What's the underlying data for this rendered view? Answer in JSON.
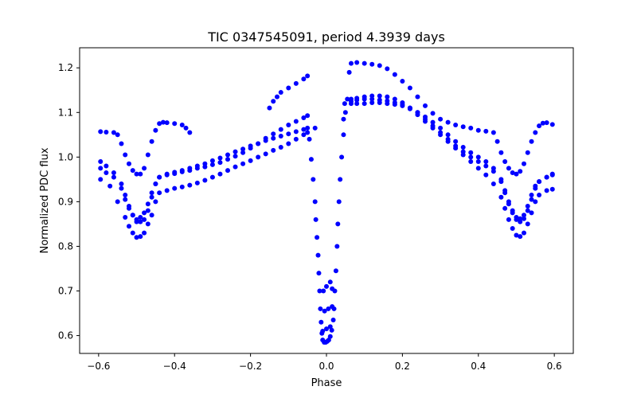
{
  "chart_data": {
    "type": "scatter",
    "title": "TIC 0347545091, period 4.3939 days",
    "xlabel": "Phase",
    "ylabel": "Normalized PDC flux",
    "xlim": [
      -0.65,
      0.65
    ],
    "ylim": [
      0.56,
      1.245
    ],
    "xticks": [
      -0.6,
      -0.4,
      -0.2,
      0.0,
      0.2,
      0.4,
      0.6
    ],
    "xtick_labels": [
      "−0.6",
      "−0.4",
      "−0.2",
      "0.0",
      "0.2",
      "0.4",
      "0.6"
    ],
    "yticks": [
      0.6,
      0.7,
      0.8,
      0.9,
      1.0,
      1.1,
      1.2
    ],
    "ytick_labels": [
      "0.6",
      "0.7",
      "0.8",
      "0.9",
      "1.0",
      "1.1",
      "1.2"
    ],
    "grid": false,
    "marker_color": "#0000ff",
    "series": [
      {
        "points": [
          [
            -0.595,
            0.975
          ],
          [
            -0.58,
            0.965
          ],
          [
            -0.56,
            0.955
          ],
          [
            -0.54,
            0.93
          ],
          [
            -0.53,
            0.905
          ],
          [
            -0.52,
            0.885
          ],
          [
            -0.51,
            0.87
          ],
          [
            -0.5,
            0.86
          ],
          [
            -0.49,
            0.865
          ],
          [
            -0.48,
            0.875
          ],
          [
            -0.47,
            0.895
          ],
          [
            -0.46,
            0.92
          ],
          [
            -0.45,
            0.94
          ],
          [
            -0.44,
            0.955
          ],
          [
            -0.42,
            0.962
          ],
          [
            -0.4,
            0.966
          ],
          [
            -0.38,
            0.97
          ],
          [
            -0.36,
            0.975
          ],
          [
            -0.34,
            0.98
          ],
          [
            -0.32,
            0.985
          ],
          [
            -0.3,
            0.992
          ],
          [
            -0.28,
            0.998
          ],
          [
            -0.26,
            1.005
          ],
          [
            -0.24,
            1.012
          ],
          [
            -0.22,
            1.018
          ],
          [
            -0.2,
            1.025
          ],
          [
            -0.18,
            1.03
          ],
          [
            -0.16,
            1.037
          ],
          [
            -0.14,
            1.042
          ],
          [
            -0.12,
            1.047
          ],
          [
            -0.1,
            1.052
          ],
          [
            -0.08,
            1.057
          ],
          [
            -0.06,
            1.062
          ],
          [
            -0.05,
            1.065
          ],
          [
            0.065,
            1.125
          ],
          [
            0.08,
            1.128
          ],
          [
            0.1,
            1.13
          ],
          [
            0.12,
            1.13
          ],
          [
            0.14,
            1.128
          ],
          [
            0.16,
            1.126
          ],
          [
            0.18,
            1.122
          ],
          [
            0.2,
            1.118
          ],
          [
            0.22,
            1.11
          ],
          [
            0.24,
            1.1
          ],
          [
            0.26,
            1.09
          ],
          [
            0.28,
            1.078
          ],
          [
            0.3,
            1.065
          ],
          [
            0.32,
            1.05
          ],
          [
            0.34,
            1.035
          ],
          [
            0.36,
            1.022
          ],
          [
            0.38,
            1.01
          ],
          [
            0.4,
            1.0
          ],
          [
            0.42,
            0.99
          ],
          [
            0.44,
            0.975
          ],
          [
            0.46,
            0.95
          ],
          [
            0.47,
            0.925
          ],
          [
            0.48,
            0.9
          ],
          [
            0.49,
            0.88
          ],
          [
            0.5,
            0.865
          ],
          [
            0.51,
            0.862
          ],
          [
            0.52,
            0.87
          ],
          [
            0.53,
            0.89
          ],
          [
            0.54,
            0.915
          ],
          [
            0.55,
            0.935
          ],
          [
            0.56,
            0.945
          ],
          [
            0.58,
            0.955
          ],
          [
            0.595,
            0.96
          ]
        ]
      },
      {
        "points": [
          [
            -0.595,
            0.95
          ],
          [
            -0.57,
            0.935
          ],
          [
            -0.55,
            0.9
          ],
          [
            -0.53,
            0.865
          ],
          [
            -0.52,
            0.845
          ],
          [
            -0.51,
            0.83
          ],
          [
            -0.5,
            0.82
          ],
          [
            -0.49,
            0.822
          ],
          [
            -0.48,
            0.83
          ],
          [
            -0.47,
            0.85
          ],
          [
            -0.46,
            0.87
          ],
          [
            -0.45,
            0.9
          ],
          [
            -0.44,
            0.92
          ],
          [
            -0.42,
            0.925
          ],
          [
            -0.4,
            0.93
          ],
          [
            -0.38,
            0.933
          ],
          [
            -0.36,
            0.937
          ],
          [
            -0.34,
            0.942
          ],
          [
            -0.32,
            0.948
          ],
          [
            -0.3,
            0.955
          ],
          [
            -0.28,
            0.962
          ],
          [
            -0.26,
            0.97
          ],
          [
            -0.24,
            0.978
          ],
          [
            -0.22,
            0.985
          ],
          [
            -0.2,
            0.992
          ],
          [
            -0.18,
            1.0
          ],
          [
            -0.16,
            1.007
          ],
          [
            -0.14,
            1.015
          ],
          [
            -0.12,
            1.022
          ],
          [
            -0.1,
            1.03
          ],
          [
            -0.08,
            1.04
          ],
          [
            -0.06,
            1.05
          ],
          [
            -0.05,
            1.055
          ],
          [
            0.065,
            1.13
          ],
          [
            0.08,
            1.132
          ],
          [
            0.1,
            1.135
          ],
          [
            0.12,
            1.137
          ],
          [
            0.14,
            1.137
          ],
          [
            0.16,
            1.135
          ],
          [
            0.18,
            1.13
          ],
          [
            0.2,
            1.122
          ],
          [
            0.22,
            1.11
          ],
          [
            0.24,
            1.095
          ],
          [
            0.26,
            1.08
          ],
          [
            0.28,
            1.065
          ],
          [
            0.3,
            1.05
          ],
          [
            0.32,
            1.035
          ],
          [
            0.34,
            1.02
          ],
          [
            0.36,
            1.005
          ],
          [
            0.38,
            0.99
          ],
          [
            0.4,
            0.975
          ],
          [
            0.42,
            0.96
          ],
          [
            0.44,
            0.94
          ],
          [
            0.46,
            0.91
          ],
          [
            0.47,
            0.885
          ],
          [
            0.48,
            0.86
          ],
          [
            0.49,
            0.84
          ],
          [
            0.5,
            0.825
          ],
          [
            0.51,
            0.822
          ],
          [
            0.52,
            0.83
          ],
          [
            0.53,
            0.85
          ],
          [
            0.54,
            0.875
          ],
          [
            0.55,
            0.9
          ],
          [
            0.56,
            0.915
          ],
          [
            0.58,
            0.925
          ],
          [
            0.595,
            0.928
          ]
        ]
      },
      {
        "points": [
          [
            -0.595,
            0.99
          ],
          [
            -0.58,
            0.98
          ],
          [
            -0.56,
            0.965
          ],
          [
            -0.54,
            0.94
          ],
          [
            -0.53,
            0.915
          ],
          [
            -0.52,
            0.89
          ],
          [
            -0.51,
            0.87
          ],
          [
            -0.5,
            0.855
          ],
          [
            -0.49,
            0.855
          ],
          [
            -0.48,
            0.86
          ],
          [
            -0.47,
            0.88
          ],
          [
            -0.46,
            0.91
          ],
          [
            -0.45,
            0.94
          ],
          [
            -0.44,
            0.955
          ],
          [
            -0.42,
            0.96
          ],
          [
            -0.4,
            0.963
          ],
          [
            -0.38,
            0.967
          ],
          [
            -0.36,
            0.97
          ],
          [
            -0.34,
            0.975
          ],
          [
            -0.32,
            0.978
          ],
          [
            -0.3,
            0.983
          ],
          [
            -0.28,
            0.988
          ],
          [
            -0.26,
            0.995
          ],
          [
            -0.24,
            1.002
          ],
          [
            -0.22,
            1.01
          ],
          [
            -0.2,
            1.02
          ],
          [
            -0.18,
            1.03
          ],
          [
            -0.16,
            1.042
          ],
          [
            -0.14,
            1.052
          ],
          [
            -0.12,
            1.062
          ],
          [
            -0.1,
            1.072
          ],
          [
            -0.08,
            1.08
          ],
          [
            -0.06,
            1.088
          ],
          [
            -0.05,
            1.093
          ],
          [
            0.065,
            1.12
          ],
          [
            0.08,
            1.12
          ],
          [
            0.1,
            1.12
          ],
          [
            0.12,
            1.122
          ],
          [
            0.14,
            1.122
          ],
          [
            0.16,
            1.12
          ],
          [
            0.18,
            1.118
          ],
          [
            0.2,
            1.115
          ],
          [
            0.22,
            1.108
          ],
          [
            0.24,
            1.1
          ],
          [
            0.26,
            1.085
          ],
          [
            0.28,
            1.07
          ],
          [
            0.3,
            1.055
          ],
          [
            0.32,
            1.04
          ],
          [
            0.34,
            1.025
          ],
          [
            0.36,
            1.012
          ],
          [
            0.38,
            1.0
          ],
          [
            0.4,
            0.99
          ],
          [
            0.42,
            0.98
          ],
          [
            0.44,
            0.968
          ],
          [
            0.46,
            0.945
          ],
          [
            0.47,
            0.92
          ],
          [
            0.48,
            0.895
          ],
          [
            0.49,
            0.875
          ],
          [
            0.5,
            0.86
          ],
          [
            0.51,
            0.855
          ],
          [
            0.52,
            0.862
          ],
          [
            0.53,
            0.88
          ],
          [
            0.54,
            0.905
          ],
          [
            0.55,
            0.93
          ],
          [
            0.56,
            0.945
          ],
          [
            0.58,
            0.955
          ],
          [
            0.595,
            0.962
          ]
        ]
      },
      {
        "points": [
          [
            -0.595,
            1.057
          ],
          [
            -0.58,
            1.056
          ],
          [
            -0.56,
            1.055
          ],
          [
            -0.55,
            1.05
          ],
          [
            -0.54,
            1.03
          ],
          [
            -0.53,
            1.005
          ],
          [
            -0.52,
            0.985
          ],
          [
            -0.51,
            0.97
          ],
          [
            -0.5,
            0.962
          ],
          [
            -0.49,
            0.962
          ],
          [
            -0.48,
            0.975
          ],
          [
            -0.47,
            1.005
          ],
          [
            -0.46,
            1.035
          ],
          [
            -0.45,
            1.06
          ],
          [
            -0.44,
            1.075
          ],
          [
            -0.43,
            1.078
          ],
          [
            -0.42,
            1.077
          ],
          [
            -0.4,
            1.075
          ],
          [
            -0.38,
            1.072
          ],
          [
            -0.37,
            1.065
          ],
          [
            -0.36,
            1.055
          ],
          [
            -0.15,
            1.11
          ],
          [
            -0.14,
            1.125
          ],
          [
            -0.13,
            1.135
          ],
          [
            -0.12,
            1.145
          ],
          [
            -0.1,
            1.155
          ],
          [
            -0.08,
            1.165
          ],
          [
            -0.06,
            1.175
          ],
          [
            -0.05,
            1.182
          ],
          [
            0.065,
            1.21
          ],
          [
            0.08,
            1.212
          ],
          [
            0.1,
            1.21
          ],
          [
            0.12,
            1.208
          ],
          [
            0.14,
            1.205
          ],
          [
            0.16,
            1.198
          ],
          [
            0.18,
            1.185
          ],
          [
            0.2,
            1.17
          ],
          [
            0.22,
            1.155
          ],
          [
            0.24,
            1.135
          ],
          [
            0.26,
            1.115
          ],
          [
            0.28,
            1.098
          ],
          [
            0.3,
            1.085
          ],
          [
            0.32,
            1.078
          ],
          [
            0.34,
            1.072
          ],
          [
            0.36,
            1.068
          ],
          [
            0.38,
            1.065
          ],
          [
            0.4,
            1.06
          ],
          [
            0.42,
            1.058
          ],
          [
            0.44,
            1.055
          ],
          [
            0.45,
            1.035
          ],
          [
            0.46,
            1.01
          ],
          [
            0.47,
            0.99
          ],
          [
            0.48,
            0.975
          ],
          [
            0.49,
            0.965
          ],
          [
            0.5,
            0.962
          ],
          [
            0.51,
            0.968
          ],
          [
            0.52,
            0.985
          ],
          [
            0.53,
            1.01
          ],
          [
            0.54,
            1.035
          ],
          [
            0.55,
            1.055
          ],
          [
            0.56,
            1.07
          ],
          [
            0.57,
            1.076
          ],
          [
            0.58,
            1.077
          ],
          [
            0.595,
            1.073
          ]
        ]
      },
      {
        "points": [
          [
            -0.045,
            1.04
          ],
          [
            -0.04,
            0.995
          ],
          [
            -0.035,
            0.95
          ],
          [
            -0.03,
            0.9
          ],
          [
            -0.028,
            0.86
          ],
          [
            -0.025,
            0.82
          ],
          [
            -0.022,
            0.78
          ],
          [
            -0.02,
            0.74
          ],
          [
            -0.018,
            0.7
          ],
          [
            -0.016,
            0.66
          ],
          [
            -0.014,
            0.63
          ],
          [
            -0.012,
            0.605
          ],
          [
            -0.01,
            0.59
          ],
          [
            -0.006,
            0.585
          ],
          [
            -0.002,
            0.585
          ],
          [
            0.002,
            0.587
          ],
          [
            0.006,
            0.59
          ],
          [
            0.01,
            0.598
          ],
          [
            0.014,
            0.612
          ],
          [
            0.018,
            0.635
          ],
          [
            0.02,
            0.66
          ],
          [
            0.022,
            0.7
          ],
          [
            0.025,
            0.745
          ],
          [
            0.028,
            0.8
          ],
          [
            0.03,
            0.85
          ],
          [
            0.033,
            0.9
          ],
          [
            0.036,
            0.95
          ],
          [
            0.04,
            1.0
          ],
          [
            0.045,
            1.05
          ],
          [
            0.05,
            1.1
          ],
          [
            0.055,
            1.13
          ],
          [
            0.06,
            1.19
          ],
          [
            -0.01,
            0.61
          ],
          [
            0.0,
            0.615
          ],
          [
            0.01,
            0.62
          ],
          [
            -0.005,
            0.655
          ],
          [
            0.005,
            0.66
          ],
          [
            0.015,
            0.665
          ],
          [
            -0.008,
            0.7
          ],
          [
            0.0,
            0.71
          ],
          [
            0.01,
            0.72
          ],
          [
            0.015,
            0.705
          ],
          [
            -0.03,
            1.065
          ],
          [
            0.045,
            1.085
          ],
          [
            0.048,
            1.12
          ]
        ]
      }
    ]
  }
}
